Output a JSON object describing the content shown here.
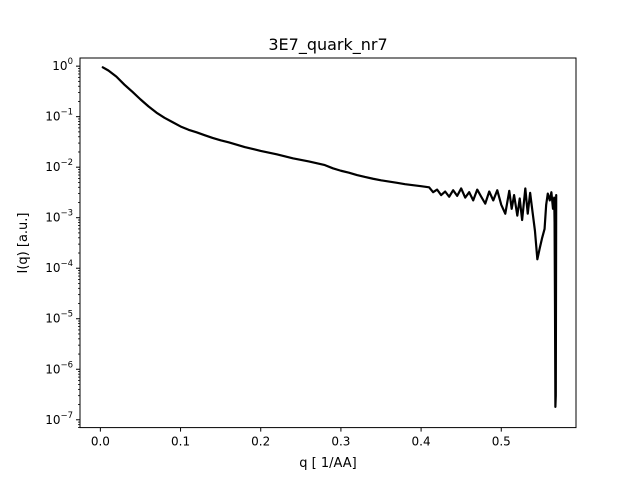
{
  "chart_data": {
    "type": "line",
    "title": "3E7_quark_nr7",
    "xlabel": "q [ 1/AA]",
    "ylabel": "I(q) [a.u.]",
    "xscale": "linear",
    "yscale": "log",
    "xlim": [
      -0.0254,
      0.5932
    ],
    "ylim": [
      7e-08,
      1.45
    ],
    "xticks": [
      {
        "value": 0.0,
        "label": "0.0"
      },
      {
        "value": 0.1,
        "label": "0.1"
      },
      {
        "value": 0.2,
        "label": "0.2"
      },
      {
        "value": 0.3,
        "label": "0.3"
      },
      {
        "value": 0.4,
        "label": "0.4"
      },
      {
        "value": 0.5,
        "label": "0.5"
      }
    ],
    "yticks": [
      {
        "exp": 0,
        "base": "10",
        "sup": "0"
      },
      {
        "exp": -1,
        "base": "10",
        "sup": "−1"
      },
      {
        "exp": -2,
        "base": "10",
        "sup": "−2"
      },
      {
        "exp": -3,
        "base": "10",
        "sup": "−3"
      },
      {
        "exp": -4,
        "base": "10",
        "sup": "−4"
      },
      {
        "exp": -5,
        "base": "10",
        "sup": "−5"
      },
      {
        "exp": -6,
        "base": "10",
        "sup": "−6"
      },
      {
        "exp": -7,
        "base": "10",
        "sup": "−7"
      }
    ],
    "grid": false,
    "series": [
      {
        "color": "#000000",
        "x": [
          0.003,
          0.01,
          0.02,
          0.03,
          0.04,
          0.05,
          0.06,
          0.07,
          0.08,
          0.09,
          0.1,
          0.11,
          0.12,
          0.13,
          0.14,
          0.15,
          0.16,
          0.18,
          0.2,
          0.22,
          0.24,
          0.26,
          0.28,
          0.29,
          0.3,
          0.31,
          0.32,
          0.33,
          0.34,
          0.35,
          0.36,
          0.37,
          0.38,
          0.39,
          0.4,
          0.41,
          0.415,
          0.42,
          0.425,
          0.43,
          0.435,
          0.44,
          0.445,
          0.45,
          0.455,
          0.46,
          0.465,
          0.47,
          0.475,
          0.48,
          0.485,
          0.49,
          0.495,
          0.5,
          0.505,
          0.51,
          0.513,
          0.516,
          0.52,
          0.523,
          0.526,
          0.53,
          0.533,
          0.536,
          0.539,
          0.542,
          0.545,
          0.548,
          0.551,
          0.554,
          0.556,
          0.558,
          0.5605,
          0.5625,
          0.5645,
          0.566,
          0.5665,
          0.567,
          0.5675,
          0.568,
          0.5685
        ],
        "y": [
          0.95,
          0.82,
          0.62,
          0.43,
          0.31,
          0.22,
          0.16,
          0.12,
          0.095,
          0.078,
          0.064,
          0.055,
          0.049,
          0.043,
          0.038,
          0.034,
          0.031,
          0.025,
          0.021,
          0.018,
          0.015,
          0.013,
          0.011,
          0.0095,
          0.0085,
          0.0078,
          0.007,
          0.0064,
          0.0059,
          0.0055,
          0.0052,
          0.0049,
          0.0046,
          0.0044,
          0.0042,
          0.004,
          0.0032,
          0.0036,
          0.0028,
          0.0033,
          0.0026,
          0.0035,
          0.0027,
          0.0038,
          0.0025,
          0.0032,
          0.0022,
          0.0036,
          0.0026,
          0.0019,
          0.0033,
          0.0022,
          0.0035,
          0.0018,
          0.0012,
          0.0034,
          0.0015,
          0.0028,
          0.0011,
          0.0024,
          0.0009,
          0.0038,
          0.0012,
          0.0031,
          0.0013,
          0.00055,
          0.00015,
          0.00025,
          0.0004,
          0.0006,
          0.0018,
          0.003,
          0.0022,
          0.0032,
          0.0015,
          0.0025,
          0.0008,
          2e-05,
          1.8e-07,
          3e-07,
          0.0028
        ]
      }
    ]
  }
}
